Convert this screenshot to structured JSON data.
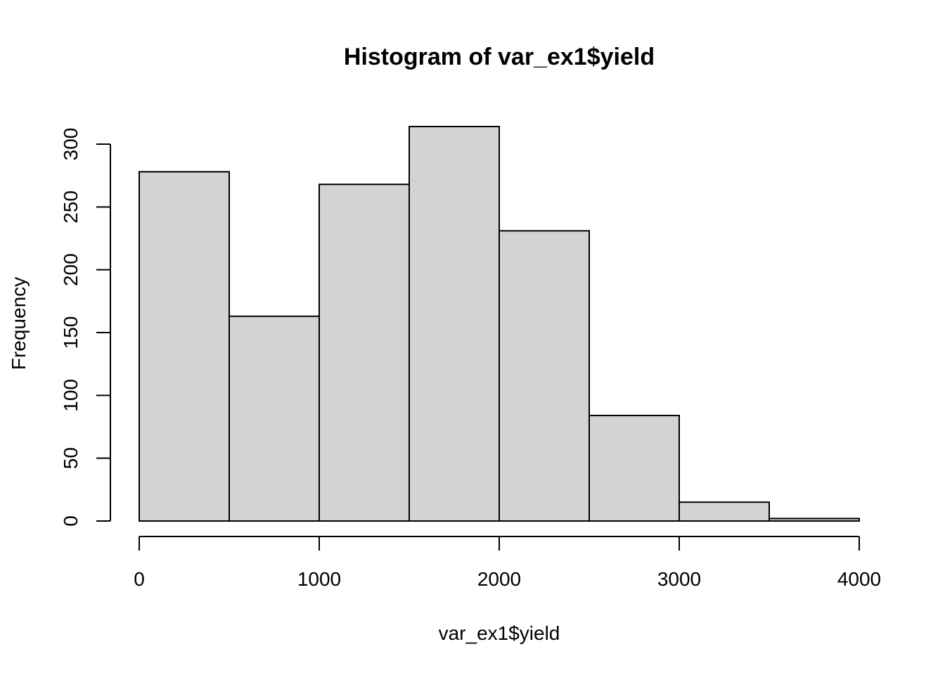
{
  "chart_data": {
    "type": "bar",
    "title": "Histogram of var_ex1$yield",
    "xlabel": "var_ex1$yield",
    "ylabel": "Frequency",
    "bins": [
      {
        "start": 0,
        "end": 500,
        "count": 278
      },
      {
        "start": 500,
        "end": 1000,
        "count": 163
      },
      {
        "start": 1000,
        "end": 1500,
        "count": 268
      },
      {
        "start": 1500,
        "end": 2000,
        "count": 314
      },
      {
        "start": 2000,
        "end": 2500,
        "count": 231
      },
      {
        "start": 2500,
        "end": 3000,
        "count": 84
      },
      {
        "start": 3000,
        "end": 3500,
        "count": 15
      },
      {
        "start": 3500,
        "end": 4000,
        "count": 2
      }
    ],
    "xlim": [
      0,
      4000
    ],
    "ylim": [
      0,
      314
    ],
    "x_ticks": [
      0,
      1000,
      2000,
      3000,
      4000
    ],
    "y_ticks": [
      0,
      50,
      100,
      150,
      200,
      250,
      300
    ],
    "bar_fill": "#d3d3d3",
    "grid": false
  }
}
